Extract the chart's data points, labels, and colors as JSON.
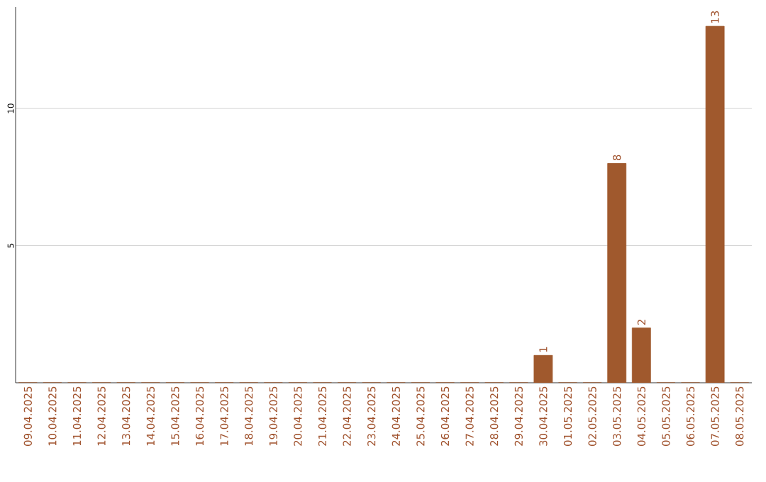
{
  "chart_data": {
    "type": "bar",
    "categories": [
      "09.04.2025",
      "10.04.2025",
      "11.04.2025",
      "12.04.2025",
      "13.04.2025",
      "14.04.2025",
      "15.04.2025",
      "16.04.2025",
      "17.04.2025",
      "18.04.2025",
      "19.04.2025",
      "20.04.2025",
      "21.04.2025",
      "22.04.2025",
      "23.04.2025",
      "24.04.2025",
      "25.04.2025",
      "26.04.2025",
      "27.04.2025",
      "28.04.2025",
      "29.04.2025",
      "30.04.2025",
      "01.05.2025",
      "02.05.2025",
      "03.05.2025",
      "04.05.2025",
      "05.05.2025",
      "06.05.2025",
      "07.05.2025",
      "08.05.2025"
    ],
    "values": [
      0,
      0,
      0,
      0,
      0,
      0,
      0,
      0,
      0,
      0,
      0,
      0,
      0,
      0,
      0,
      0,
      0,
      0,
      0,
      0,
      0,
      1,
      0,
      0,
      8,
      2,
      0,
      0,
      13,
      0
    ],
    "value_labels": [
      null,
      null,
      null,
      null,
      null,
      null,
      null,
      null,
      null,
      null,
      null,
      null,
      null,
      null,
      null,
      null,
      null,
      null,
      null,
      null,
      null,
      "1",
      null,
      null,
      "8",
      "2",
      null,
      null,
      "13",
      null
    ],
    "color": "#a0592d",
    "ylim": [
      0,
      13.7
    ],
    "yticks": [
      5,
      10
    ],
    "grid": "y"
  }
}
